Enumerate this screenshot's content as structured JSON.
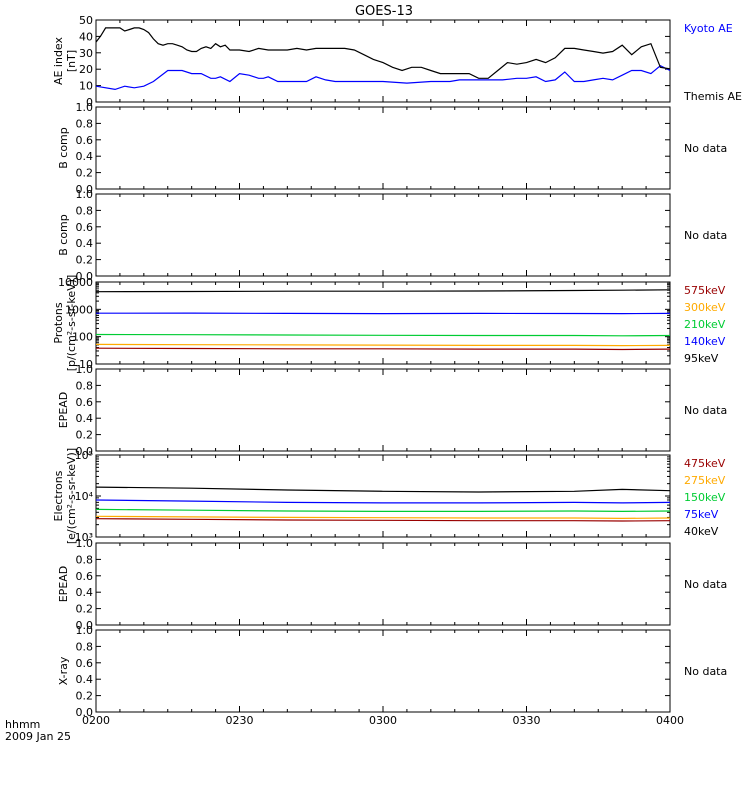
{
  "title": "GOES-13",
  "time_axis": {
    "ticks": [
      "0200",
      "0230",
      "0300",
      "0330",
      "0400"
    ],
    "label_line1": "hhmm",
    "label_line2": "2009 Jan 25"
  },
  "colors": {
    "black": "#000000",
    "blue": "#0000ff",
    "green": "#00cc33",
    "orange": "#ffaa00",
    "darkred": "#990000"
  },
  "chart_data": [
    {
      "id": "ae",
      "type": "line",
      "ylabel": "AE index",
      "ylabel2": "[nT]",
      "ylim": [
        0,
        52
      ],
      "yticks": [
        "0",
        "10",
        "20",
        "30",
        "40",
        "50"
      ],
      "series": [
        {
          "name": "Kyoto AE",
          "color": "#0000ff",
          "x": [
            0,
            4,
            6,
            8,
            10,
            12,
            15,
            18,
            20,
            22,
            24,
            25,
            26,
            28,
            30,
            32,
            34,
            35,
            36,
            38,
            40,
            42,
            44,
            46,
            48,
            50,
            55,
            60,
            65,
            70,
            72,
            74,
            76,
            80,
            85,
            88,
            90,
            92,
            94,
            96,
            98,
            100,
            102,
            104,
            106,
            108,
            110,
            112,
            114,
            116,
            118,
            120
          ],
          "y": [
            10,
            8,
            10,
            9,
            10,
            13,
            20,
            20,
            18,
            18,
            15,
            15,
            16,
            13,
            18,
            17,
            15,
            15,
            16,
            13,
            13,
            13,
            13,
            16,
            14,
            13,
            13,
            13,
            12,
            13,
            13,
            13,
            14,
            14,
            14,
            15,
            15,
            16,
            13,
            14,
            19,
            13,
            13,
            14,
            15,
            14,
            17,
            20,
            20,
            18,
            23,
            20
          ]
        },
        {
          "name": "Themis AE",
          "color": "#000000",
          "x": [
            0,
            1,
            2,
            3,
            4,
            5,
            6,
            7,
            8,
            9,
            10,
            11,
            12,
            13,
            14,
            15,
            16,
            17,
            18,
            19,
            20,
            21,
            22,
            23,
            24,
            25,
            26,
            27,
            28,
            29,
            30,
            32,
            34,
            36,
            38,
            40,
            42,
            44,
            46,
            48,
            50,
            52,
            54,
            56,
            58,
            60,
            62,
            64,
            66,
            68,
            70,
            72,
            74,
            76,
            78,
            80,
            82,
            84,
            86,
            88,
            90,
            92,
            94,
            96,
            98,
            100,
            102,
            104,
            106,
            108,
            110,
            112,
            114,
            116,
            118,
            120
          ],
          "y": [
            38,
            42,
            47,
            47,
            47,
            47,
            45,
            46,
            47,
            47,
            46,
            44,
            40,
            37,
            36,
            37,
            37,
            36,
            35,
            33,
            32,
            32,
            34,
            35,
            34,
            37,
            35,
            36,
            33,
            33,
            33,
            32,
            34,
            33,
            33,
            33,
            34,
            33,
            34,
            34,
            34,
            34,
            33,
            30,
            27,
            25,
            22,
            20,
            22,
            22,
            20,
            18,
            18,
            18,
            18,
            15,
            15,
            20,
            25,
            24,
            25,
            27,
            25,
            28,
            34,
            34,
            33,
            32,
            31,
            32,
            36,
            30,
            35,
            37,
            22,
            21
          ]
        }
      ],
      "right_labels": [
        {
          "text": "Kyoto AE",
          "color": "#0000ff"
        },
        {
          "text": "Themis AE",
          "color": "#000000"
        }
      ]
    },
    {
      "id": "bcomp1",
      "type": "line",
      "ylabel": "B comp",
      "ylim": [
        0,
        1
      ],
      "yticks": [
        "0.0",
        "0.2",
        "0.4",
        "0.6",
        "0.8",
        "1.0"
      ],
      "series": [],
      "right_labels": [
        {
          "text": "No data",
          "color": "#000000"
        }
      ]
    },
    {
      "id": "bcomp2",
      "type": "line",
      "ylabel": "B comp",
      "ylim": [
        0,
        1
      ],
      "yticks": [
        "0.0",
        "0.2",
        "0.4",
        "0.6",
        "0.8",
        "1.0"
      ],
      "series": [],
      "right_labels": [
        {
          "text": "No data",
          "color": "#000000"
        }
      ]
    },
    {
      "id": "protons",
      "type": "line",
      "scale": "log",
      "ylabel": "Protons",
      "ylabel2": "[p/(cm²-s-sr-keV)]",
      "ylim": [
        10,
        10000
      ],
      "yticks": [
        "10",
        "100",
        "1000",
        "10000"
      ],
      "series": [
        {
          "name": "575keV",
          "color": "#990000",
          "x": [
            0,
            20,
            40,
            60,
            80,
            100,
            110,
            120
          ],
          "y": [
            38,
            37,
            36,
            36,
            35,
            35,
            34,
            35
          ]
        },
        {
          "name": "300keV",
          "color": "#ffaa00",
          "x": [
            0,
            20,
            40,
            60,
            80,
            100,
            110,
            120
          ],
          "y": [
            52,
            51,
            50,
            49,
            48,
            48,
            47,
            48
          ]
        },
        {
          "name": "210keV",
          "color": "#00cc33",
          "x": [
            0,
            20,
            40,
            60,
            80,
            100,
            110,
            120
          ],
          "y": [
            120,
            118,
            115,
            112,
            110,
            110,
            108,
            110
          ]
        },
        {
          "name": "140keV",
          "color": "#0000ff",
          "x": [
            0,
            20,
            40,
            60,
            80,
            100,
            110,
            120
          ],
          "y": [
            720,
            730,
            710,
            700,
            710,
            705,
            700,
            710
          ]
        },
        {
          "name": "95keV",
          "color": "#000000",
          "x": [
            0,
            20,
            40,
            60,
            80,
            100,
            110,
            120
          ],
          "y": [
            4400,
            4500,
            4600,
            4600,
            4700,
            4900,
            5000,
            5200
          ]
        }
      ],
      "right_labels": [
        {
          "text": "575keV",
          "color": "#990000"
        },
        {
          "text": "300keV",
          "color": "#ffaa00"
        },
        {
          "text": "210keV",
          "color": "#00cc33"
        },
        {
          "text": "140keV",
          "color": "#0000ff"
        },
        {
          "text": "95keV",
          "color": "#000000"
        }
      ]
    },
    {
      "id": "epead1",
      "type": "line",
      "ylabel": "EPEAD",
      "ylim": [
        0,
        1
      ],
      "yticks": [
        "0.0",
        "0.2",
        "0.4",
        "0.6",
        "0.8",
        "1.0"
      ],
      "series": [],
      "right_labels": [
        {
          "text": "No data",
          "color": "#000000"
        }
      ]
    },
    {
      "id": "electrons",
      "type": "line",
      "scale": "log",
      "ylabel": "Electrons",
      "ylabel2": "[e/(cm²-s-sr-keV)]",
      "ylim": [
        1000,
        100000
      ],
      "yticks": [
        "10³",
        "10⁴",
        "10⁵"
      ],
      "series": [
        {
          "name": "475keV",
          "color": "#990000",
          "x": [
            0,
            20,
            40,
            60,
            80,
            100,
            110,
            120
          ],
          "y": [
            2800,
            2700,
            2600,
            2550,
            2500,
            2500,
            2450,
            2500
          ]
        },
        {
          "name": "275keV",
          "color": "#ffaa00",
          "x": [
            0,
            20,
            40,
            60,
            80,
            100,
            110,
            120
          ],
          "y": [
            3200,
            3100,
            3000,
            2950,
            2900,
            2900,
            2850,
            2900
          ]
        },
        {
          "name": "150keV",
          "color": "#00cc33",
          "x": [
            0,
            20,
            40,
            60,
            80,
            100,
            110,
            120
          ],
          "y": [
            4700,
            4500,
            4300,
            4200,
            4200,
            4300,
            4200,
            4300
          ]
        },
        {
          "name": "75keV",
          "color": "#0000ff",
          "x": [
            0,
            20,
            40,
            60,
            80,
            100,
            110,
            120
          ],
          "y": [
            8000,
            7500,
            7000,
            6800,
            6800,
            7000,
            6800,
            7000
          ]
        },
        {
          "name": "40keV",
          "color": "#000000",
          "x": [
            0,
            20,
            40,
            60,
            80,
            100,
            110,
            120
          ],
          "y": [
            16500,
            15500,
            14000,
            13000,
            12500,
            13000,
            14500,
            13500
          ]
        }
      ],
      "right_labels": [
        {
          "text": "475keV",
          "color": "#990000"
        },
        {
          "text": "275keV",
          "color": "#ffaa00"
        },
        {
          "text": "150keV",
          "color": "#00cc33"
        },
        {
          "text": "75keV",
          "color": "#0000ff"
        },
        {
          "text": "40keV",
          "color": "#000000"
        }
      ]
    },
    {
      "id": "epead2",
      "type": "line",
      "ylabel": "EPEAD",
      "ylim": [
        0,
        1
      ],
      "yticks": [
        "0.0",
        "0.2",
        "0.4",
        "0.6",
        "0.8",
        "1.0"
      ],
      "series": [],
      "right_labels": [
        {
          "text": "No data",
          "color": "#000000"
        }
      ]
    },
    {
      "id": "xray",
      "type": "line",
      "ylabel": "X-ray",
      "ylim": [
        0,
        1
      ],
      "yticks": [
        "0.0",
        "0.2",
        "0.4",
        "0.6",
        "0.8",
        "1.0"
      ],
      "series": [],
      "right_labels": [
        {
          "text": "No data",
          "color": "#000000"
        }
      ]
    }
  ]
}
